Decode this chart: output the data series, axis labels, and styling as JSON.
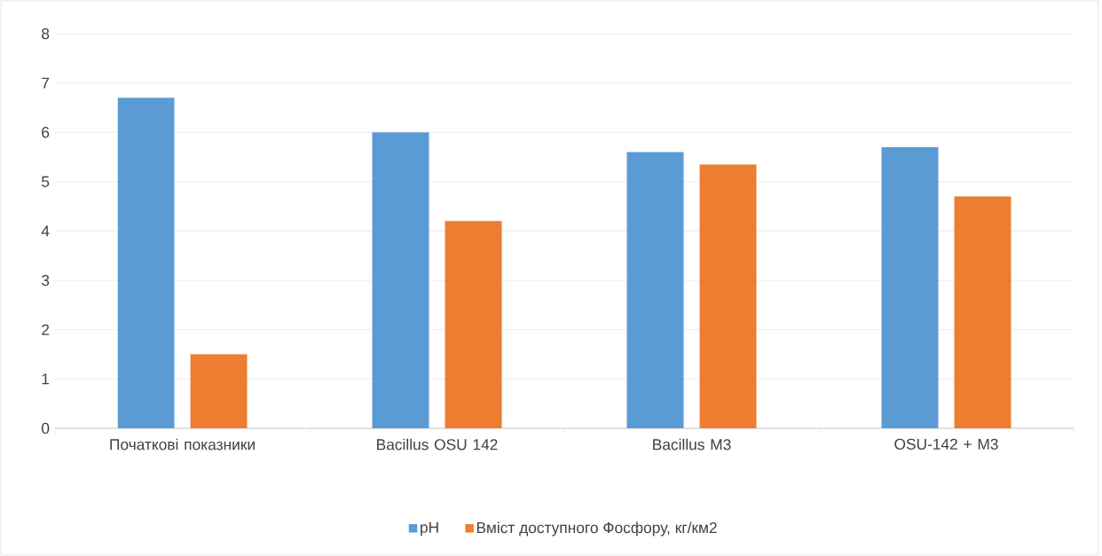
{
  "chart_data": {
    "type": "bar",
    "categories": [
      "Початкові показники",
      "Bacillus OSU 142",
      "Bacillus M3",
      "OSU-142 + M3"
    ],
    "series": [
      {
        "name": "pH",
        "color": "#5b9bd5",
        "values": [
          6.7,
          6.0,
          5.6,
          5.7
        ]
      },
      {
        "name": "Вміст доступного Фосфору, кг/км2",
        "color": "#ed7d31",
        "values": [
          1.5,
          4.2,
          5.35,
          4.7
        ]
      }
    ],
    "ylim": [
      0,
      8
    ],
    "yticks": [
      0,
      1,
      2,
      3,
      4,
      5,
      6,
      7,
      8
    ],
    "grid": "y",
    "legend": "bottom"
  }
}
